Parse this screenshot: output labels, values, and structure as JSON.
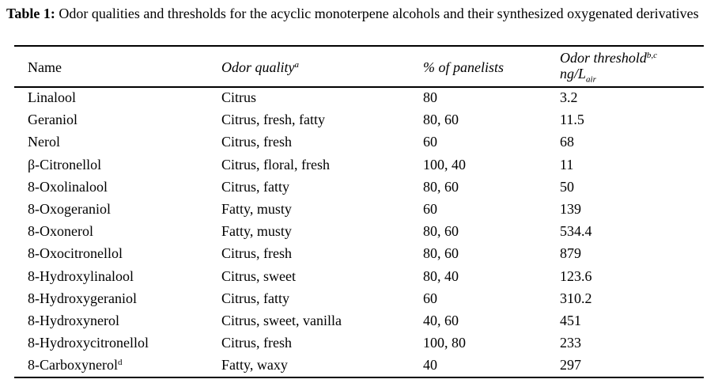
{
  "caption": {
    "label": "Table 1:",
    "text": " Odor qualities and thresholds for the acyclic monoterpene alcohols and their synthesized oxygenated derivatives"
  },
  "header": {
    "name": "Name",
    "odor_quality": "Odor quality",
    "odor_quality_sup": "a",
    "panelists": "% of panelists",
    "threshold": "Odor threshold",
    "threshold_sup": "b,c",
    "threshold_unit": "ng/L",
    "threshold_unit_sub": "air"
  },
  "rows": [
    {
      "name": "Linalool",
      "sup": "",
      "quality": "Citrus",
      "panelists": "80",
      "threshold": "3.2"
    },
    {
      "name": "Geraniol",
      "sup": "",
      "quality": "Citrus, fresh, fatty",
      "panelists": "80, 60",
      "threshold": "11.5"
    },
    {
      "name": "Nerol",
      "sup": "",
      "quality": "Citrus, fresh",
      "panelists": "60",
      "threshold": "68"
    },
    {
      "name": "β-Citronellol",
      "sup": "",
      "quality": "Citrus, floral, fresh",
      "panelists": "100, 40",
      "threshold": "11"
    },
    {
      "name": "8-Oxolinalool",
      "sup": "",
      "quality": "Citrus, fatty",
      "panelists": "80, 60",
      "threshold": "50"
    },
    {
      "name": "8-Oxogeraniol",
      "sup": "",
      "quality": "Fatty, musty",
      "panelists": "60",
      "threshold": "139"
    },
    {
      "name": "8-Oxonerol",
      "sup": "",
      "quality": "Fatty, musty",
      "panelists": "80, 60",
      "threshold": "534.4"
    },
    {
      "name": "8-Oxocitronellol",
      "sup": "",
      "quality": "Citrus, fresh",
      "panelists": "80, 60",
      "threshold": "879"
    },
    {
      "name": "8-Hydroxylinalool",
      "sup": "",
      "quality": "Citrus, sweet",
      "panelists": "80, 40",
      "threshold": "123.6"
    },
    {
      "name": "8-Hydroxygeraniol",
      "sup": "",
      "quality": "Citrus, fatty",
      "panelists": "60",
      "threshold": "310.2"
    },
    {
      "name": "8-Hydroxynerol",
      "sup": "",
      "quality": "Citrus, sweet, vanilla",
      "panelists": "40, 60",
      "threshold": "451"
    },
    {
      "name": "8-Hydroxycitronellol",
      "sup": "",
      "quality": "Citrus, fresh",
      "panelists": "100, 80",
      "threshold": "233"
    },
    {
      "name": "8-Carboxynerol",
      "sup": "d",
      "quality": "Fatty, waxy",
      "panelists": "40",
      "threshold": "297"
    }
  ]
}
